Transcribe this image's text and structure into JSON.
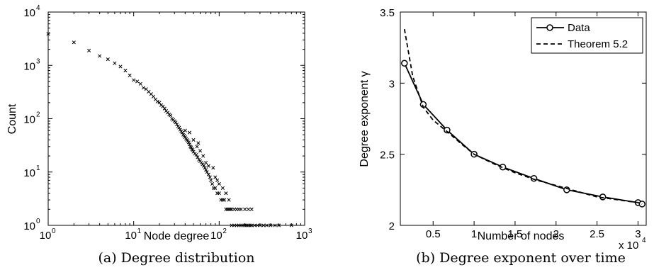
{
  "chart_data": [
    {
      "type": "scatter",
      "caption": "(a) Degree distribution",
      "xlabel": "Node degree",
      "ylabel": "Count",
      "xscale": "log",
      "yscale": "log",
      "xlim": [
        1,
        1000
      ],
      "ylim": [
        1,
        10000
      ],
      "xticks": [
        {
          "base": "10",
          "exp": "0",
          "value": 1
        },
        {
          "base": "10",
          "exp": "1",
          "value": 10
        },
        {
          "base": "10",
          "exp": "2",
          "value": 100
        },
        {
          "base": "10",
          "exp": "3",
          "value": 1000
        }
      ],
      "yticks": [
        {
          "base": "10",
          "exp": "0",
          "value": 1
        },
        {
          "base": "10",
          "exp": "1",
          "value": 10
        },
        {
          "base": "10",
          "exp": "2",
          "value": 100
        },
        {
          "base": "10",
          "exp": "3",
          "value": 1000
        },
        {
          "base": "10",
          "exp": "4",
          "value": 10000
        }
      ],
      "marker": "x",
      "color": "#000000",
      "points": [
        [
          1,
          3900
        ],
        [
          2,
          2700
        ],
        [
          3,
          1900
        ],
        [
          4,
          1500
        ],
        [
          5,
          1300
        ],
        [
          6,
          1100
        ],
        [
          7,
          950
        ],
        [
          8,
          800
        ],
        [
          9,
          650
        ],
        [
          10,
          530
        ],
        [
          11,
          500
        ],
        [
          12,
          450
        ],
        [
          13,
          380
        ],
        [
          14,
          360
        ],
        [
          15,
          320
        ],
        [
          16,
          290
        ],
        [
          17,
          260
        ],
        [
          18,
          230
        ],
        [
          19,
          210
        ],
        [
          20,
          200
        ],
        [
          21,
          180
        ],
        [
          22,
          170
        ],
        [
          23,
          155
        ],
        [
          24,
          140
        ],
        [
          25,
          130
        ],
        [
          26,
          120
        ],
        [
          27,
          115
        ],
        [
          28,
          100
        ],
        [
          29,
          95
        ],
        [
          30,
          90
        ],
        [
          31,
          85
        ],
        [
          32,
          78
        ],
        [
          33,
          72
        ],
        [
          34,
          68
        ],
        [
          35,
          62
        ],
        [
          36,
          58
        ],
        [
          37,
          55
        ],
        [
          38,
          50
        ],
        [
          39,
          48
        ],
        [
          40,
          45
        ],
        [
          41,
          42
        ],
        [
          42,
          40
        ],
        [
          43,
          38
        ],
        [
          44,
          36
        ],
        [
          45,
          33
        ],
        [
          46,
          30
        ],
        [
          47,
          29
        ],
        [
          48,
          27
        ],
        [
          49,
          26
        ],
        [
          50,
          24
        ],
        [
          52,
          22
        ],
        [
          54,
          21
        ],
        [
          56,
          19
        ],
        [
          58,
          17
        ],
        [
          60,
          16
        ],
        [
          62,
          15
        ],
        [
          64,
          14
        ],
        [
          66,
          13
        ],
        [
          68,
          12
        ],
        [
          70,
          11
        ],
        [
          72,
          10
        ],
        [
          75,
          9
        ],
        [
          78,
          8
        ],
        [
          80,
          7
        ],
        [
          83,
          6
        ],
        [
          86,
          5
        ],
        [
          90,
          5
        ],
        [
          95,
          4
        ],
        [
          100,
          4
        ],
        [
          105,
          3
        ],
        [
          110,
          3
        ],
        [
          115,
          3
        ],
        [
          120,
          2
        ],
        [
          125,
          2
        ],
        [
          130,
          2
        ],
        [
          135,
          2
        ],
        [
          140,
          2
        ],
        [
          150,
          2
        ],
        [
          160,
          2
        ],
        [
          170,
          2
        ],
        [
          180,
          2
        ],
        [
          200,
          2
        ],
        [
          220,
          2
        ],
        [
          240,
          2
        ],
        [
          140,
          1
        ],
        [
          150,
          1
        ],
        [
          160,
          1
        ],
        [
          170,
          1
        ],
        [
          180,
          1
        ],
        [
          190,
          1
        ],
        [
          200,
          1
        ],
        [
          210,
          1
        ],
        [
          220,
          1
        ],
        [
          230,
          1
        ],
        [
          240,
          1
        ],
        [
          260,
          1
        ],
        [
          280,
          1
        ],
        [
          300,
          1
        ],
        [
          330,
          1
        ],
        [
          360,
          1
        ],
        [
          400,
          1
        ],
        [
          450,
          1
        ],
        [
          500,
          1
        ],
        [
          700,
          1
        ],
        [
          40,
          60
        ],
        [
          45,
          55
        ],
        [
          55,
          30
        ],
        [
          60,
          25
        ],
        [
          65,
          20
        ],
        [
          70,
          15
        ],
        [
          75,
          13
        ],
        [
          85,
          12
        ],
        [
          90,
          8
        ],
        [
          95,
          7
        ],
        [
          100,
          6
        ],
        [
          110,
          5
        ],
        [
          120,
          4
        ],
        [
          130,
          3
        ],
        [
          50,
          40
        ],
        [
          57,
          35
        ]
      ]
    },
    {
      "type": "line",
      "caption": "(b) Degree exponent over time",
      "xlabel": "Number of nodes",
      "ylabel": "Degree exponent γ",
      "xlim": [
        1000,
        31000
      ],
      "ylim": [
        2,
        3.5
      ],
      "xticks": [
        {
          "label": "0.5",
          "value": 5000
        },
        {
          "label": "1",
          "value": 10000
        },
        {
          "label": "1.5",
          "value": 15000
        },
        {
          "label": "2",
          "value": 20000
        },
        {
          "label": "2.5",
          "value": 25000
        },
        {
          "label": "3",
          "value": 30000
        }
      ],
      "yticks": [
        {
          "label": "2",
          "value": 2
        },
        {
          "label": "2.5",
          "value": 2.5
        },
        {
          "label": "3",
          "value": 3
        },
        {
          "label": "3.5",
          "value": 3.5
        }
      ],
      "xmultiplier": {
        "prefix": "x 10",
        "exp": "4"
      },
      "legend_position": "top-right",
      "series": [
        {
          "name": "Data",
          "style": "solid",
          "marker": "o",
          "color": "#000000",
          "x": [
            1500,
            3800,
            6700,
            10000,
            13500,
            17300,
            21300,
            25700,
            30000,
            30500
          ],
          "y": [
            3.14,
            2.85,
            2.67,
            2.5,
            2.41,
            2.33,
            2.25,
            2.2,
            2.16,
            2.15
          ]
        },
        {
          "name": "Theorem 5.2",
          "style": "dashed",
          "marker": "none",
          "color": "#000000",
          "x": [
            1500,
            2500,
            3800,
            5000,
            6700,
            8500,
            10000,
            12500,
            15000,
            17500,
            20000,
            22500,
            25000,
            27500,
            30000,
            30500
          ],
          "y": [
            3.38,
            3.05,
            2.83,
            2.74,
            2.66,
            2.57,
            2.5,
            2.43,
            2.37,
            2.32,
            2.28,
            2.24,
            2.2,
            2.18,
            2.16,
            2.15
          ]
        }
      ]
    }
  ]
}
